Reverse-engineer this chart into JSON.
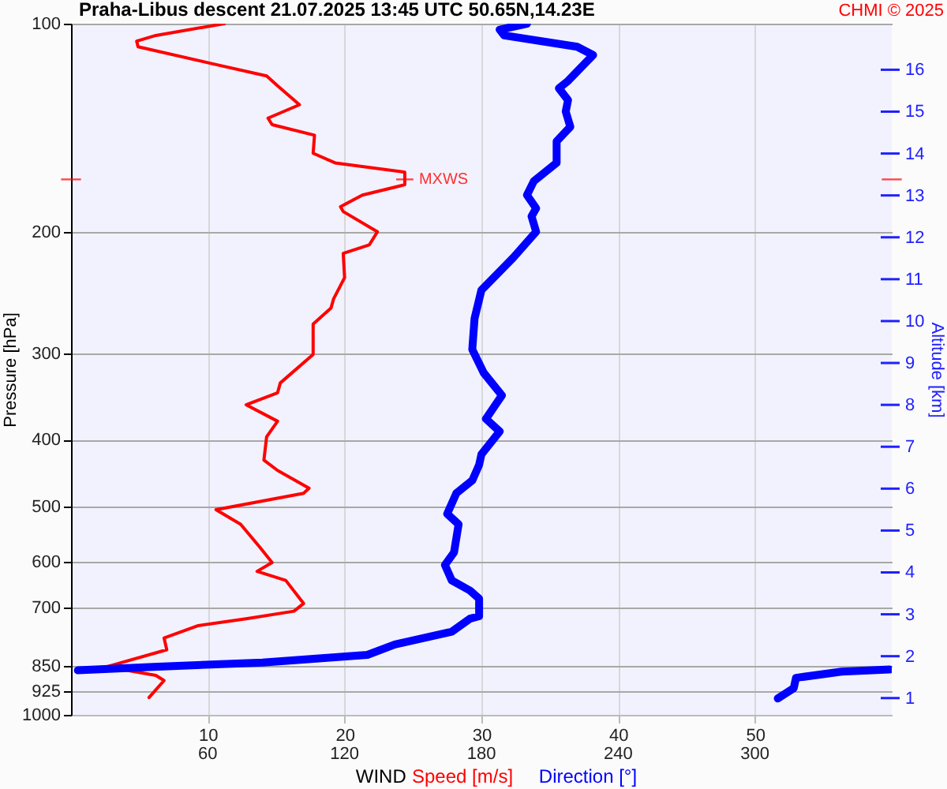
{
  "chart_data": {
    "type": "line",
    "orientation": "horizontal",
    "title": "Praha-Libus descent 21.07.2025 13:45 UTC 50.65N,14.23E",
    "xlabel": "WIND",
    "ylabel": "Pressure [hPa]",
    "y2label": "Altitude [km]",
    "xlim": [
      0,
      60
    ],
    "x2lim": [
      0,
      360
    ],
    "xticks": [
      10,
      20,
      30,
      40,
      50
    ],
    "x2ticks": [
      60,
      120,
      180,
      240,
      300
    ],
    "ylim": [
      1000,
      100
    ],
    "yticks": [
      100,
      200,
      300,
      400,
      500,
      600,
      700,
      850,
      925,
      1000
    ],
    "y2lim": [
      0.6,
      17.1
    ],
    "y2ticks": [
      1,
      2,
      3,
      4,
      5,
      6,
      7,
      8,
      9,
      10,
      11,
      12,
      13,
      14,
      15,
      16
    ],
    "log": "y",
    "grid": true,
    "legend": "bottom",
    "series": [
      {
        "name": "Speed [m/s]",
        "color": "#ff0000",
        "x": [
          100,
          104,
          106,
          108,
          114,
          119,
          123,
          131,
          137,
          140,
          145,
          154,
          159,
          164,
          171,
          177,
          184,
          187,
          200,
          209,
          215,
          233,
          250,
          258,
          272,
          301,
          331,
          342,
          356,
          376,
          396,
          428,
          443,
          470,
          478,
          505,
          530,
          572,
          602,
          620,
          639,
          690,
          708,
          726,
          743,
          774,
          805,
          852,
          877,
          892,
          944
        ],
        "values": [
          11.2,
          6.2,
          4.8,
          4.9,
          10.1,
          14.3,
          15.1,
          16.7,
          14.4,
          14.7,
          17.8,
          17.7,
          19.3,
          24.4,
          24.4,
          21.3,
          19.7,
          19.9,
          22.4,
          21.8,
          19.9,
          20.0,
          19.2,
          19.0,
          17.7,
          17.7,
          15.3,
          15.1,
          12.8,
          15.1,
          14.3,
          14.1,
          15.1,
          17.4,
          17.0,
          10.6,
          12.4,
          13.8,
          14.7,
          13.6,
          15.7,
          17.0,
          16.3,
          12.8,
          9.3,
          6.8,
          7.0,
          2.6,
          6.2,
          6.8,
          5.7
        ]
      },
      {
        "name": "Direction [°]",
        "color": "#0000ff",
        "axis": "x2",
        "x": [
          100,
          102,
          104,
          108,
          111,
          121,
          124,
          129,
          134,
          141,
          148,
          159,
          169,
          177,
          185,
          190,
          200,
          218,
          243,
          267,
          296,
          320,
          345,
          373,
          389,
          420,
          435,
          458,
          478,
          512,
          530,
          582,
          607,
          639,
          661,
          679,
          720,
          726,
          758,
          791,
          819,
          840,
          852,
          862,
          null,
          860,
          866,
          884,
          915,
          947
        ],
        "values": [
          200,
          188,
          190,
          222,
          229,
          218,
          214,
          218,
          217,
          219,
          213,
          213,
          203,
          200,
          204,
          202,
          204,
          194,
          180,
          177,
          176,
          181,
          189,
          182,
          188,
          180,
          179,
          176,
          169,
          165,
          170,
          168,
          164,
          167,
          175,
          179,
          179,
          175,
          167,
          142,
          130,
          84,
          38,
          3,
          null,
          359,
          338,
          318,
          317,
          310
        ]
      }
    ],
    "annotations": [
      {
        "text": "MXWS",
        "x": 24.4,
        "y": 168
      },
      "CHMI © 2025"
    ]
  }
}
